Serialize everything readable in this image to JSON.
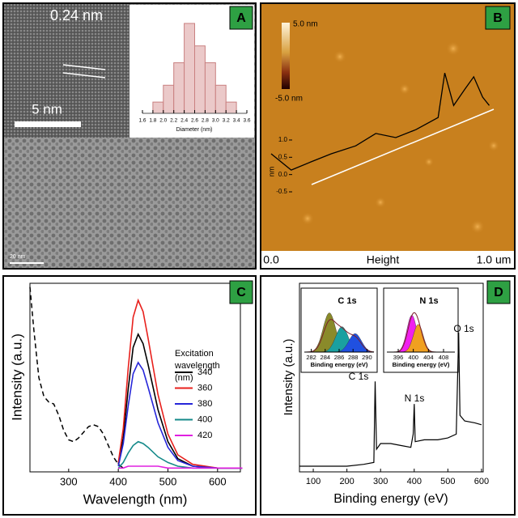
{
  "panels": [
    {
      "label": "A",
      "annotations": [
        "0.24 nm",
        "5 nm",
        "20 nm"
      ]
    },
    {
      "label": "B",
      "colorbar": [
        "5.0 nm",
        "-5.0 nm"
      ]
    },
    {
      "label": "C"
    },
    {
      "label": "D"
    }
  ],
  "chart_data": [
    {
      "type": "histogram",
      "xlabel": "Diameter (nm)",
      "bins": [
        1.8,
        2.0,
        2.2,
        2.4,
        2.6,
        2.8,
        3.0,
        3.2,
        3.4
      ],
      "values": [
        2,
        5,
        9,
        16,
        12,
        9,
        5,
        2
      ],
      "color": "#ebc9c9",
      "edgecolor": "#c98080",
      "xlim": [
        1.6,
        3.6
      ],
      "xticks": [
        1.6,
        1.8,
        {
          "value": 2,
          "label": "2.0"
        },
        2.2,
        2.4,
        2.6,
        2.8,
        {
          "value": 3,
          "label": "3.0"
        },
        3.2,
        3.4,
        3.6
      ],
      "ylim": [
        0,
        17
      ]
    },
    {
      "type": "line",
      "xlabel": "Height",
      "ylabel": "nm",
      "x": [
        0,
        0.09,
        0.18,
        0.27,
        0.38,
        0.47,
        0.56,
        0.65,
        0.75,
        0.78,
        0.82,
        0.87,
        0.91,
        0.95,
        0.98
      ],
      "values": [
        0.6,
        0.13,
        0.37,
        0.6,
        0.83,
        1.19,
        1.07,
        1.3,
        1.65,
        2.94,
        2.0,
        2.47,
        2.83,
        2.24,
        2.0
      ],
      "color": "#000000",
      "xlim": [
        0,
        1
      ],
      "xticks": [
        {
          "value": 0,
          "label": "0.0"
        },
        {
          "value": 1,
          "label": "1.0 um"
        }
      ],
      "ylim": [
        -0.5,
        3
      ],
      "yticks": [
        -0.5,
        {
          "value": 0,
          "label": "0.0"
        },
        0.5,
        {
          "value": 1,
          "label": "1.0"
        }
      ]
    },
    {
      "type": "line",
      "xlabel": "Wavelength (nm)",
      "ylabel": "Intensity (a.u.)",
      "legend_title": "Excitation wavelength (nm)",
      "x": [
        400,
        410,
        420,
        430,
        440,
        450,
        460,
        480,
        500,
        520,
        550,
        600,
        650
      ],
      "series": [
        {
          "name": "340",
          "color": "#000000",
          "values": [
            0.04,
            0.18,
            0.44,
            0.66,
            0.73,
            0.68,
            0.57,
            0.33,
            0.16,
            0.07,
            0.03,
            0.02,
            0.02
          ]
        },
        {
          "name": "360",
          "color": "#e8201c",
          "values": [
            0.05,
            0.23,
            0.55,
            0.82,
            0.91,
            0.85,
            0.71,
            0.41,
            0.2,
            0.09,
            0.04,
            0.02,
            0.02
          ]
        },
        {
          "name": "380",
          "color": "#2626d9",
          "values": [
            0.03,
            0.15,
            0.35,
            0.52,
            0.58,
            0.54,
            0.45,
            0.26,
            0.13,
            0.06,
            0.03,
            0.02,
            0.02
          ]
        },
        {
          "name": "400",
          "color": "#158a8a",
          "values": [
            0.02,
            0.05,
            0.1,
            0.14,
            0.16,
            0.15,
            0.13,
            0.08,
            0.05,
            0.03,
            0.02,
            0.02,
            0.02
          ]
        },
        {
          "name": "420",
          "color": "#e020e0",
          "values": [
            0.02,
            0.02,
            0.03,
            0.03,
            0.03,
            0.03,
            0.03,
            0.03,
            0.02,
            0.02,
            0.02,
            0.02,
            0.02
          ]
        }
      ],
      "absorption": {
        "color": "#000000",
        "dashed": true,
        "x": [
          222,
          230,
          240,
          250,
          260,
          270,
          280,
          290,
          300,
          310,
          320,
          330,
          340,
          350,
          360,
          370,
          380,
          390,
          400,
          410
        ],
        "values": [
          0.98,
          0.75,
          0.5,
          0.4,
          0.37,
          0.36,
          0.3,
          0.22,
          0.17,
          0.16,
          0.18,
          0.21,
          0.24,
          0.25,
          0.24,
          0.2,
          0.14,
          0.08,
          0.04,
          0.02
        ]
      },
      "xlim": [
        222,
        646
      ],
      "xticks": [
        300,
        400,
        500,
        600
      ],
      "ylim": [
        0,
        1
      ]
    },
    {
      "type": "line",
      "xlabel": "Binding energy (eV)",
      "ylabel": "Intensity (a.u.)",
      "annotations": [
        "C 1s",
        "N 1s",
        "O 1s"
      ],
      "x": [
        60,
        100,
        150,
        200,
        250,
        280,
        284,
        288,
        300,
        330,
        360,
        390,
        397,
        400,
        403,
        430,
        470,
        500,
        525,
        532,
        536,
        550,
        580,
        600
      ],
      "values": [
        0.03,
        0.03,
        0.03,
        0.03,
        0.04,
        0.05,
        0.48,
        0.12,
        0.15,
        0.15,
        0.14,
        0.13,
        0.2,
        0.36,
        0.16,
        0.17,
        0.17,
        0.18,
        0.2,
        0.74,
        0.3,
        0.27,
        0.26,
        0.25
      ],
      "color": "#000000",
      "xlim": [
        59,
        605
      ],
      "xticks": [
        100,
        200,
        300,
        400,
        500,
        600
      ],
      "ylim": [
        0,
        1
      ]
    },
    {
      "type": "peaks",
      "title": "C 1s",
      "xlabel": "Binding energy (eV)",
      "xlim": [
        281,
        291
      ],
      "xticks": [
        282,
        284,
        286,
        288,
        290
      ],
      "ylim": [
        0,
        1
      ],
      "envelope_color": "#7a1f2b",
      "peaks": [
        {
          "center": 284.6,
          "height": 0.85,
          "width": 0.9,
          "color": "#8a8a2a"
        },
        {
          "center": 286.4,
          "height": 0.55,
          "width": 0.9,
          "color": "#1aa0a0"
        },
        {
          "center": 288.3,
          "height": 0.4,
          "width": 0.9,
          "color": "#2050e0"
        }
      ]
    },
    {
      "type": "peaks",
      "title": "N 1s",
      "xlabel": "Binding energy (eV)",
      "xlim": [
        393,
        411
      ],
      "xticks": [
        396,
        400,
        404,
        408
      ],
      "ylim": [
        0,
        1
      ],
      "envelope_color": "#7a1f2b",
      "peaks": [
        {
          "center": 399.6,
          "height": 0.8,
          "width": 1.3,
          "color": "#f020f0"
        },
        {
          "center": 401.3,
          "height": 0.6,
          "width": 1.3,
          "color": "#f0a020"
        }
      ]
    }
  ]
}
